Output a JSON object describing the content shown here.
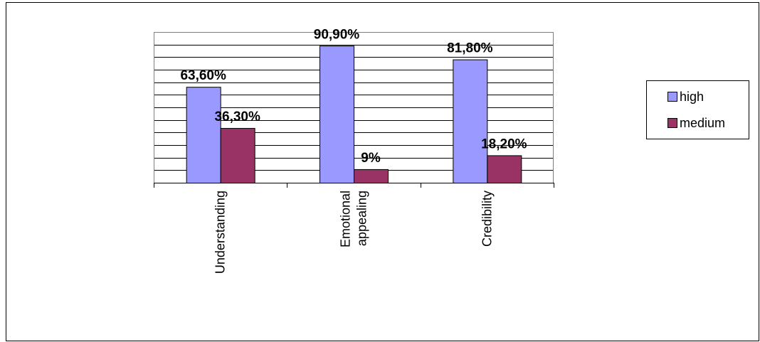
{
  "chart_data": {
    "type": "bar",
    "categories": [
      "Understanding",
      "Emotional appealing",
      "Credibility"
    ],
    "category_lines": [
      [
        "Understanding"
      ],
      [
        "Emotional",
        "appealing"
      ],
      [
        "Credibility"
      ]
    ],
    "series": [
      {
        "name": "high",
        "values": [
          63.6,
          90.9,
          81.8
        ],
        "labels": [
          "63,60%",
          "90,90%",
          "81,80%"
        ],
        "color": "#9999ff"
      },
      {
        "name": "medium",
        "values": [
          36.3,
          9,
          18.2
        ],
        "labels": [
          "36,30%",
          "9%",
          "18,20%"
        ],
        "color": "#993366"
      }
    ],
    "ylim": [
      0,
      100
    ],
    "grid": true,
    "legend": "right",
    "title": "",
    "xlabel": "",
    "ylabel": ""
  }
}
